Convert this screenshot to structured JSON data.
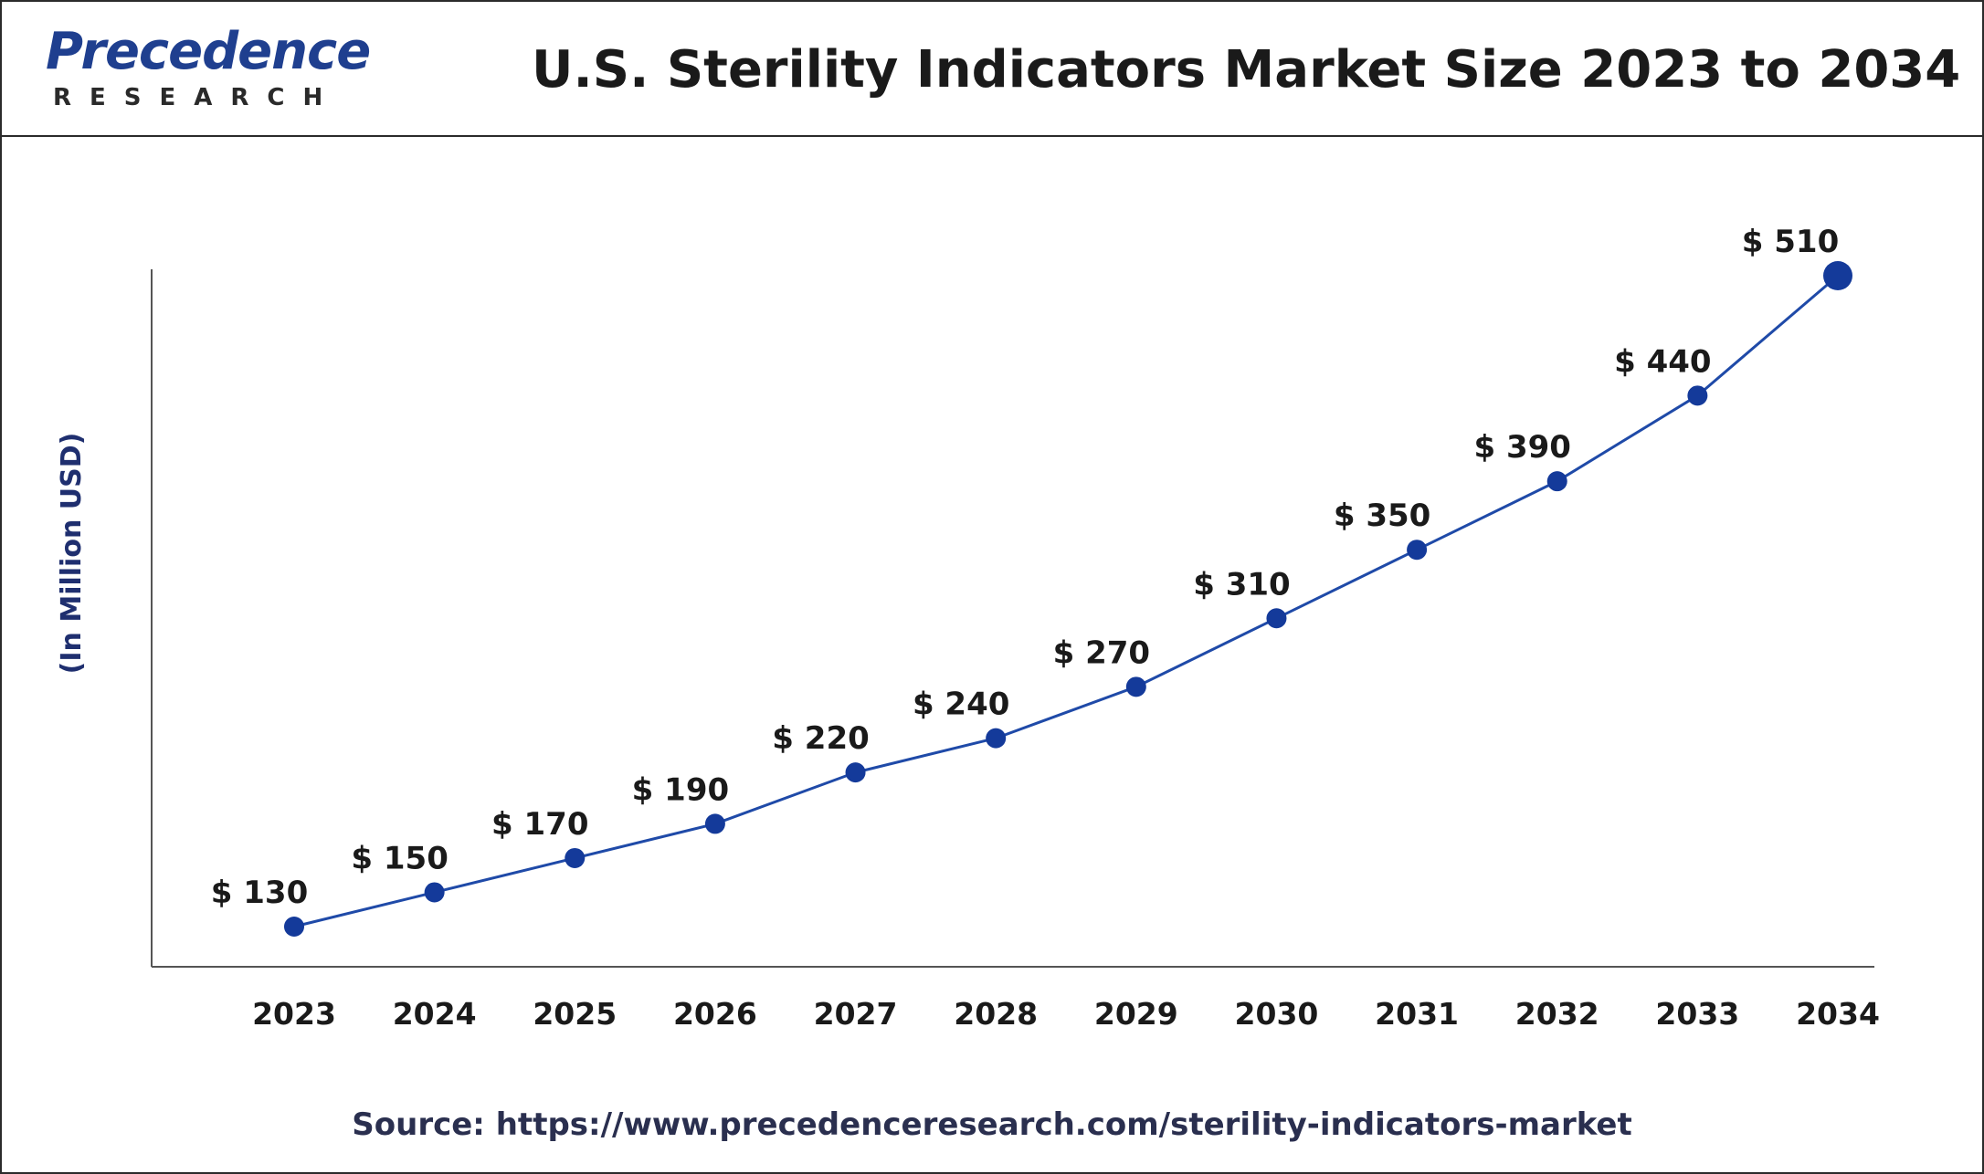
{
  "header": {
    "logo_word": "Precedence",
    "logo_sub": "RESEARCH",
    "title": "U.S. Sterility Indicators Market Size 2023 to 2034"
  },
  "source": "Source: https://www.precedenceresearch.com/sterility-indicators-market",
  "colors": {
    "line": "#1f4aa8",
    "marker": "#143a9a",
    "axis": "#555555",
    "text": "#1a1a1a",
    "ylabel": "#1f2f6f"
  },
  "chart_data": {
    "type": "line",
    "title": "U.S. Sterility Indicators Market Size 2023 to 2034",
    "xlabel": "",
    "ylabel": "(In Million USD)",
    "categories": [
      "2023",
      "2024",
      "2025",
      "2026",
      "2027",
      "2028",
      "2029",
      "2030",
      "2031",
      "2032",
      "2033",
      "2034"
    ],
    "values": [
      130,
      150,
      170,
      190,
      220,
      240,
      270,
      310,
      350,
      390,
      440,
      510
    ],
    "value_labels": [
      "$ 130",
      "$ 150",
      "$ 170",
      "$ 190",
      "$ 220",
      "$ 240",
      "$ 270",
      "$ 310",
      "$ 350",
      "$ 390",
      "$ 440",
      "$ 510"
    ],
    "grid": false,
    "legend": "none"
  }
}
